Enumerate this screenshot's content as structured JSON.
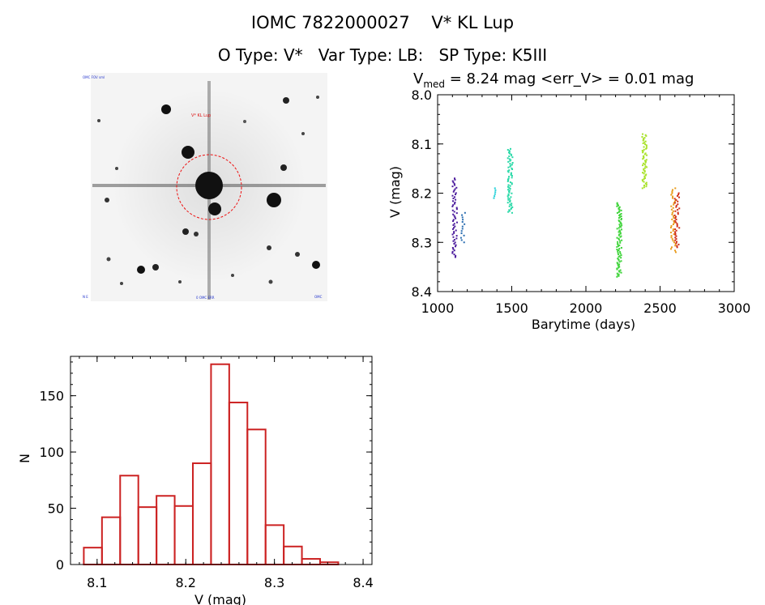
{
  "header": {
    "line1_id": "IOMC 7822000027",
    "line1_name": "V* KL Lup",
    "line2_otype": "O Type: V*",
    "line2_vartype": "Var Type: LB:",
    "line2_sptype": "SP Type: K5III"
  },
  "finder": {
    "top_left_label": "OMC FOV sml",
    "target_label": "V* KL Lup",
    "bottom_left_label": "N E",
    "bottom_center_label": "0 OMC ERR",
    "bottom_right_label": "OMC"
  },
  "lightcurve": {
    "vmed_symbol": "V",
    "vmed_sub": "med",
    "vmed_text": " = 8.24 mag  <err_V> = 0.01 mag",
    "xlabel": "Barytime (days)",
    "ylabel": "V (mag)"
  },
  "chart_data": [
    {
      "type": "scatter",
      "xlabel": "Barytime (days)",
      "ylabel": "V (mag)",
      "xlim": [
        1000,
        3000
      ],
      "ylim": [
        8.4,
        8.0
      ],
      "y_inverted": true,
      "xticks": [
        1000,
        1500,
        2000,
        2500,
        3000
      ],
      "yticks": [
        8.0,
        8.1,
        8.2,
        8.3,
        8.4
      ],
      "annotation": "Vmed = 8.24 mag <err_V> = 0.01 mag",
      "groups": [
        {
          "x": 1115,
          "ymin": 8.17,
          "ymax": 8.33,
          "color": "#4b1a9c",
          "n": 60
        },
        {
          "x": 1170,
          "ymin": 8.24,
          "ymax": 8.3,
          "color": "#2a6db0",
          "n": 14
        },
        {
          "x": 1375,
          "ymin": 8.19,
          "ymax": 8.21,
          "color": "#22d0d8",
          "n": 6
        },
        {
          "x": 1490,
          "ymin": 8.11,
          "ymax": 8.24,
          "color": "#2ad9a8",
          "n": 70
        },
        {
          "x": 2225,
          "ymin": 8.22,
          "ymax": 8.37,
          "color": "#3fd43a",
          "n": 90
        },
        {
          "x": 2395,
          "ymin": 8.08,
          "ymax": 8.19,
          "color": "#a8e22a",
          "n": 60
        },
        {
          "x": 2590,
          "ymin": 8.19,
          "ymax": 8.32,
          "color": "#e89a1a",
          "n": 40
        },
        {
          "x": 2615,
          "ymin": 8.2,
          "ymax": 8.31,
          "color": "#d0301a",
          "n": 40
        }
      ]
    },
    {
      "type": "bar",
      "subtype": "histogram",
      "xlabel": "V (mag)",
      "ylabel": "N",
      "xlim": [
        8.07,
        8.41
      ],
      "ylim": [
        0,
        185
      ],
      "xticks": [
        8.1,
        8.2,
        8.3,
        8.4
      ],
      "yticks": [
        0,
        50,
        100,
        150
      ],
      "bin_start": 8.085,
      "bin_width": 0.0205,
      "values": [
        15,
        42,
        79,
        51,
        61,
        52,
        90,
        178,
        144,
        120,
        35,
        16,
        5,
        2
      ],
      "bar_color": "#cc2222"
    }
  ]
}
